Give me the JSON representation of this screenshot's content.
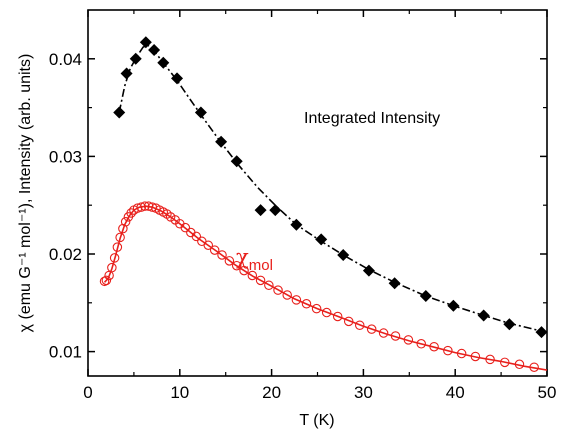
{
  "chart_data": {
    "type": "scatter",
    "xlabel": "T (K)",
    "ylabel": "χ (emu G⁻¹ mol⁻¹), Intensity (arb. units)",
    "xlim": [
      0,
      50
    ],
    "ylim": [
      0.0075,
      0.045
    ],
    "x_ticks": [
      0,
      10,
      20,
      30,
      40,
      50
    ],
    "y_ticks": [
      0.01,
      0.02,
      0.03,
      0.04
    ],
    "x_tick_labels": [
      "0",
      "10",
      "20",
      "30",
      "40",
      "50"
    ],
    "y_tick_labels": [
      "0.01",
      "0.02",
      "0.03",
      "0.04"
    ],
    "grid": false,
    "annotations": {
      "intensity_label": "Integrated Intensity",
      "chi_symbol": "χ",
      "chi_subscript": "mol"
    },
    "colors": {
      "intensity": "#000000",
      "chi": "#e8201c"
    },
    "series": [
      {
        "marker": "diamond",
        "line": "dash-dot",
        "color": "#000000",
        "points": [
          [
            3.4,
            0.0345
          ],
          [
            4.2,
            0.0385
          ],
          [
            5.2,
            0.04
          ],
          [
            6.3,
            0.0417
          ],
          [
            7.2,
            0.0409
          ],
          [
            8.2,
            0.0396
          ],
          [
            9.7,
            0.038
          ],
          [
            12.3,
            0.0345
          ],
          [
            14.5,
            0.0315
          ],
          [
            16.2,
            0.0295
          ],
          [
            18.8,
            0.0245
          ],
          [
            20.4,
            0.0245
          ],
          [
            22.7,
            0.023
          ],
          [
            25.4,
            0.0215
          ],
          [
            27.8,
            0.0199
          ],
          [
            30.6,
            0.0183
          ],
          [
            33.4,
            0.017
          ],
          [
            36.8,
            0.0157
          ],
          [
            39.8,
            0.0147
          ],
          [
            43.1,
            0.0137
          ],
          [
            45.9,
            0.0128
          ],
          [
            49.4,
            0.012
          ]
        ],
        "curve": [
          [
            3.4,
            0.0345
          ],
          [
            4.0,
            0.0372
          ],
          [
            4.6,
            0.039
          ],
          [
            5.3,
            0.0402
          ],
          [
            6.0,
            0.0412
          ],
          [
            6.5,
            0.0414
          ],
          [
            7.2,
            0.0408
          ],
          [
            8.2,
            0.0396
          ],
          [
            9.7,
            0.0378
          ],
          [
            11.0,
            0.036
          ],
          [
            12.5,
            0.034
          ],
          [
            14.5,
            0.0314
          ],
          [
            16.5,
            0.029
          ],
          [
            18.5,
            0.0268
          ],
          [
            20.5,
            0.0249
          ],
          [
            22.7,
            0.023
          ],
          [
            25.4,
            0.0213
          ],
          [
            27.8,
            0.0199
          ],
          [
            30.6,
            0.0184
          ],
          [
            33.4,
            0.0171
          ],
          [
            36.8,
            0.0157
          ],
          [
            39.8,
            0.0147
          ],
          [
            43.1,
            0.0137
          ],
          [
            45.9,
            0.0129
          ],
          [
            49.4,
            0.0121
          ]
        ]
      },
      {
        "marker": "open-circle",
        "line": "solid",
        "color": "#e8201c",
        "points": [
          [
            1.8,
            0.0172
          ],
          [
            2.0,
            0.0173
          ],
          [
            2.3,
            0.0178
          ],
          [
            2.6,
            0.0186
          ],
          [
            2.9,
            0.0196
          ],
          [
            3.2,
            0.0207
          ],
          [
            3.5,
            0.0217
          ],
          [
            3.8,
            0.0226
          ],
          [
            4.1,
            0.0233
          ],
          [
            4.4,
            0.0238
          ],
          [
            4.7,
            0.0242
          ],
          [
            5.0,
            0.0245
          ],
          [
            5.4,
            0.0247
          ],
          [
            5.8,
            0.0248
          ],
          [
            6.2,
            0.0249
          ],
          [
            6.6,
            0.0249
          ],
          [
            7.0,
            0.0248
          ],
          [
            7.4,
            0.0247
          ],
          [
            7.8,
            0.0245
          ],
          [
            8.2,
            0.0243
          ],
          [
            8.6,
            0.0241
          ],
          [
            9.0,
            0.0238
          ],
          [
            9.5,
            0.0235
          ],
          [
            10.0,
            0.0231
          ],
          [
            10.6,
            0.0227
          ],
          [
            11.2,
            0.0222
          ],
          [
            11.8,
            0.0218
          ],
          [
            12.4,
            0.0213
          ],
          [
            13.1,
            0.0209
          ],
          [
            13.8,
            0.0204
          ],
          [
            14.6,
            0.0199
          ],
          [
            15.4,
            0.0193
          ],
          [
            16.2,
            0.0188
          ],
          [
            17.0,
            0.0183
          ],
          [
            17.9,
            0.0178
          ],
          [
            18.8,
            0.0173
          ],
          [
            19.7,
            0.0168
          ],
          [
            20.7,
            0.0163
          ],
          [
            21.7,
            0.0158
          ],
          [
            22.7,
            0.0153
          ],
          [
            23.8,
            0.0149
          ],
          [
            24.9,
            0.0144
          ],
          [
            26.0,
            0.014
          ],
          [
            27.2,
            0.0136
          ],
          [
            28.4,
            0.0131
          ],
          [
            29.6,
            0.0127
          ],
          [
            30.9,
            0.0123
          ],
          [
            32.2,
            0.0119
          ],
          [
            33.5,
            0.0116
          ],
          [
            34.9,
            0.0112
          ],
          [
            36.3,
            0.0108
          ],
          [
            37.7,
            0.0105
          ],
          [
            39.2,
            0.0101
          ],
          [
            40.7,
            0.0098
          ],
          [
            42.2,
            0.0095
          ],
          [
            43.8,
            0.0092
          ],
          [
            45.4,
            0.0089
          ],
          [
            47.0,
            0.0087
          ],
          [
            48.6,
            0.0084
          ]
        ],
        "curve": [
          [
            1.8,
            0.0171
          ],
          [
            2.2,
            0.0175
          ],
          [
            2.6,
            0.0185
          ],
          [
            3.0,
            0.0198
          ],
          [
            3.5,
            0.0216
          ],
          [
            4.0,
            0.023
          ],
          [
            4.5,
            0.0239
          ],
          [
            5.0,
            0.0245
          ],
          [
            5.6,
            0.0248
          ],
          [
            6.3,
            0.0249
          ],
          [
            7.0,
            0.0248
          ],
          [
            8.0,
            0.0244
          ],
          [
            9.0,
            0.0238
          ],
          [
            10.0,
            0.0231
          ],
          [
            12.0,
            0.0216
          ],
          [
            14.0,
            0.0203
          ],
          [
            16.0,
            0.0189
          ],
          [
            18.0,
            0.0177
          ],
          [
            20.0,
            0.0167
          ],
          [
            22.5,
            0.0154
          ],
          [
            25.0,
            0.0144
          ],
          [
            27.5,
            0.0135
          ],
          [
            30.0,
            0.0126
          ],
          [
            32.5,
            0.0118
          ],
          [
            35.0,
            0.0111
          ],
          [
            37.5,
            0.0105
          ],
          [
            40.0,
            0.0099
          ],
          [
            42.5,
            0.0094
          ],
          [
            45.0,
            0.009
          ],
          [
            47.5,
            0.0085
          ],
          [
            50.0,
            0.0081
          ]
        ]
      }
    ]
  }
}
